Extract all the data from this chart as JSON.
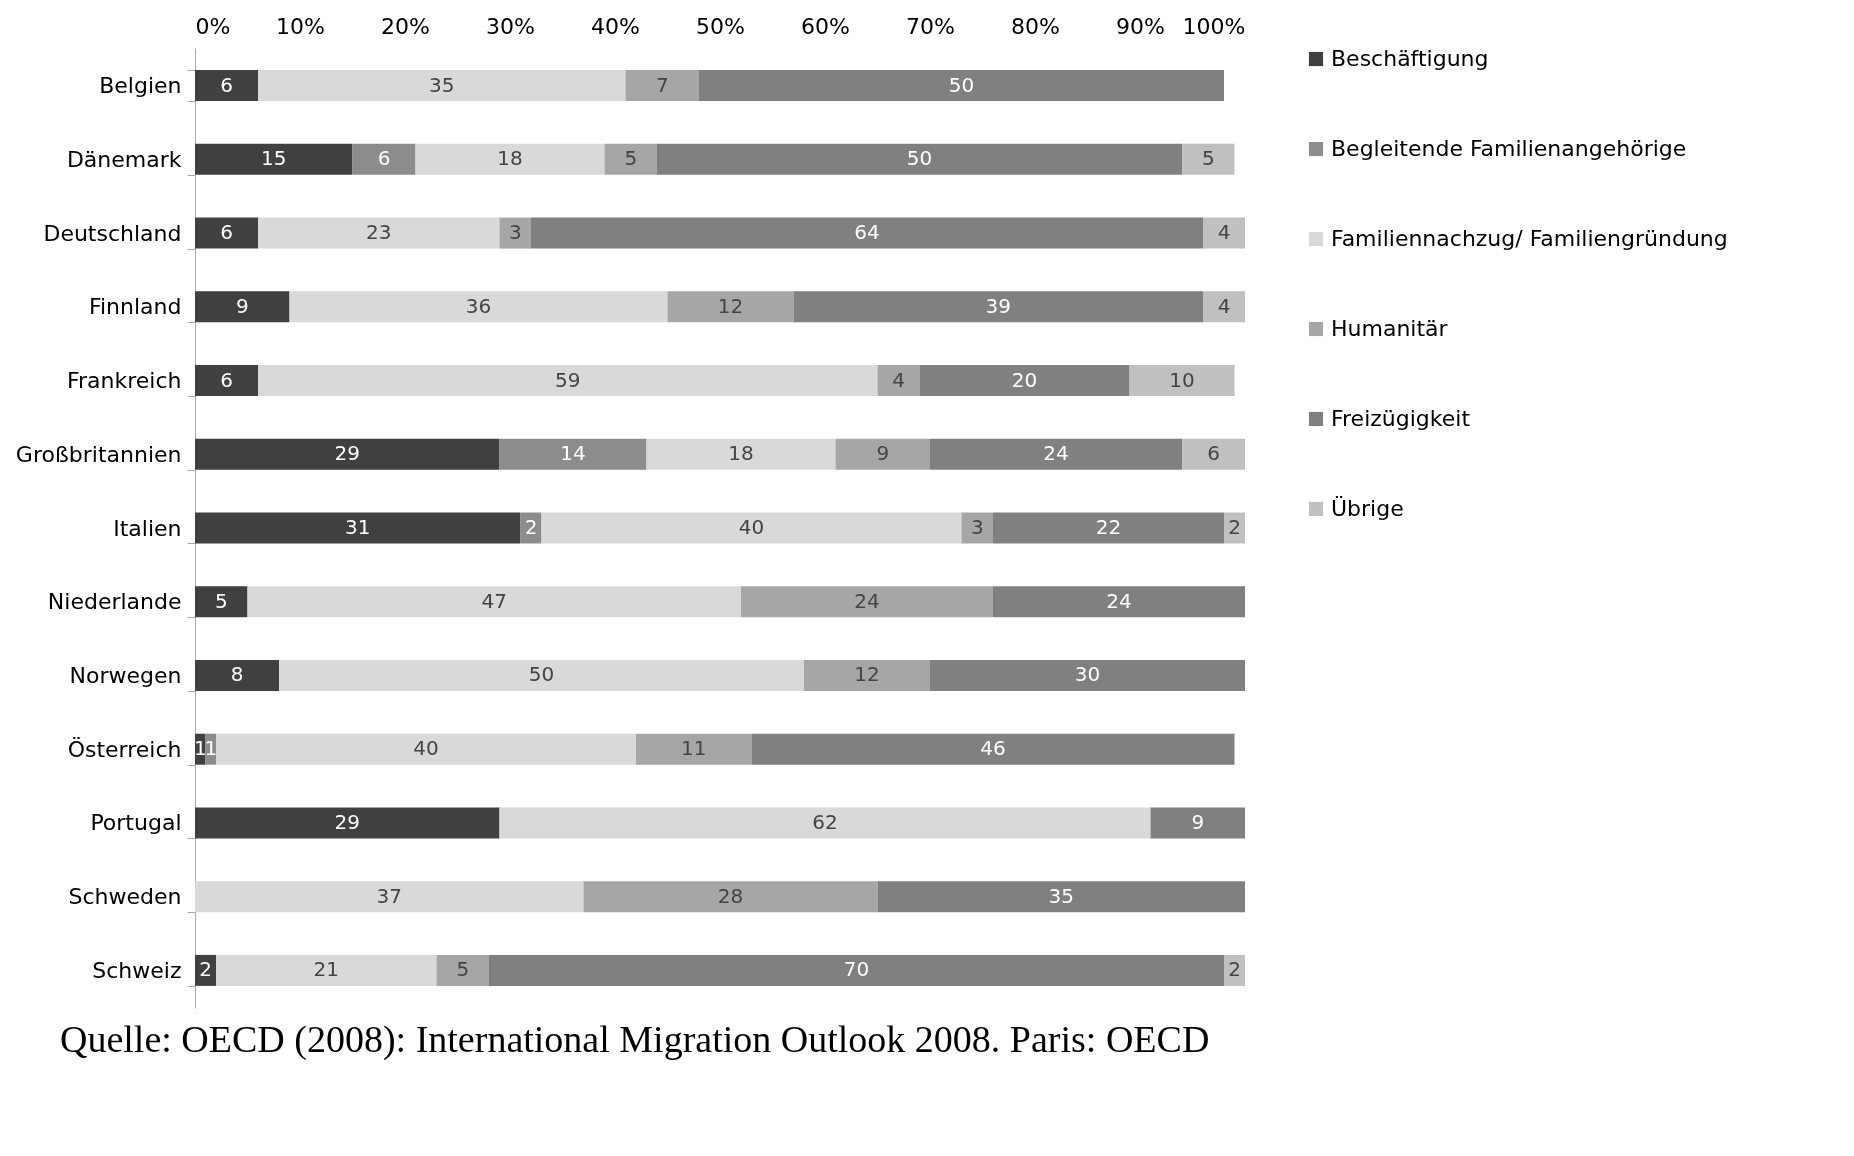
{
  "chart_data": {
    "type": "bar",
    "orientation": "horizontal",
    "stacked": true,
    "data_labels": true,
    "legend": "right",
    "grid": false,
    "categories": [
      "Belgien",
      "Dänemark",
      "Deutschland",
      "Finnland",
      "Frankreich",
      "Großbritannien",
      "Italien",
      "Niederlande",
      "Norwegen",
      "Österreich",
      "Portugal",
      "Schweden",
      "Schweiz"
    ],
    "series": [
      {
        "name": "Beschäftigung",
        "color": "#404040",
        "values": [
          6,
          15,
          6,
          9,
          6,
          29,
          31,
          5,
          8,
          1,
          29,
          null,
          2
        ]
      },
      {
        "name": "Begleitende Familienangehörige",
        "color": "#8c8c8c",
        "values": [
          null,
          6,
          null,
          null,
          null,
          14,
          2,
          null,
          null,
          1,
          null,
          null,
          null
        ]
      },
      {
        "name": "Familiennachzug/ Familiengründung",
        "color": "#d9d9d9",
        "values": [
          35,
          18,
          23,
          36,
          59,
          18,
          40,
          47,
          50,
          40,
          62,
          37,
          21
        ]
      },
      {
        "name": "Humanitär",
        "color": "#a6a6a6",
        "values": [
          7,
          5,
          3,
          12,
          4,
          9,
          3,
          24,
          12,
          11,
          null,
          28,
          5
        ]
      },
      {
        "name": "Freizügigkeit",
        "color": "#808080",
        "values": [
          50,
          50,
          64,
          39,
          20,
          24,
          22,
          24,
          30,
          46,
          9,
          35,
          70
        ]
      },
      {
        "name": "Übrige",
        "color": "#c0c0c0",
        "values": [
          null,
          5,
          4,
          4,
          10,
          6,
          2,
          null,
          null,
          null,
          null,
          null,
          2
        ]
      }
    ],
    "xlim": [
      0,
      100
    ],
    "xticks": [
      {
        "value": 0,
        "label": "0%"
      },
      {
        "value": 10,
        "label": "10%"
      },
      {
        "value": 20,
        "label": "20%"
      },
      {
        "value": 30,
        "label": "30%"
      },
      {
        "value": 40,
        "label": "40%"
      },
      {
        "value": 50,
        "label": "50%"
      },
      {
        "value": 60,
        "label": "60%"
      },
      {
        "value": 70,
        "label": "70%"
      },
      {
        "value": 80,
        "label": "80%"
      },
      {
        "value": 90,
        "label": "90%"
      },
      {
        "value": 100,
        "label": "100%"
      }
    ],
    "annotations": [
      "Quelle: OECD (2008): International Migration Outlook 2008. Paris: OECD"
    ]
  }
}
